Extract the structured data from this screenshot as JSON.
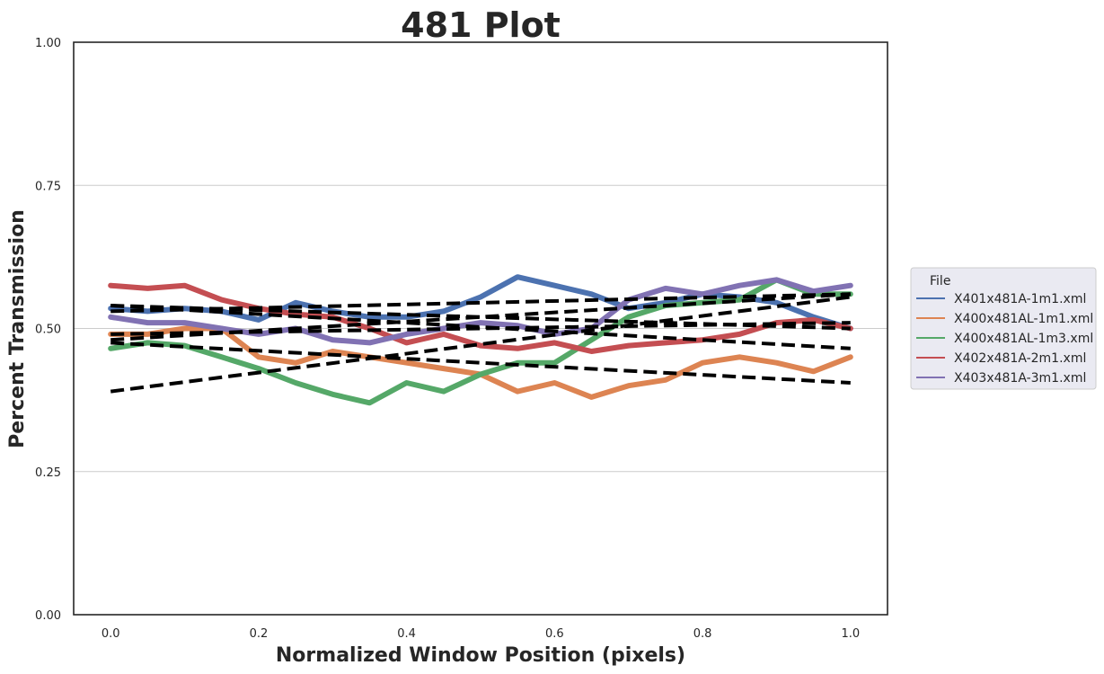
{
  "chart_data": {
    "type": "line",
    "title": "481 Plot",
    "xlabel": "Normalized Window Position (pixels)",
    "ylabel": "Percent Transmission",
    "xlim": [
      -0.05,
      1.05
    ],
    "ylim": [
      0.0,
      1.0
    ],
    "xticks": [
      "0.0",
      "0.2",
      "0.4",
      "0.6",
      "0.8",
      "1.0"
    ],
    "yticks": [
      "0.00",
      "0.25",
      "0.50",
      "0.75",
      "1.00"
    ],
    "grid": "horizontal",
    "legend": {
      "title": "File",
      "placement": "right-outside",
      "entries": [
        "X401x481A-1m1.xml",
        "X400x481AL-1m1.xml",
        "X400x481AL-1m3.xml",
        "X402x481A-2m1.xml",
        "X403x481A-3m1.xml"
      ]
    },
    "series": [
      {
        "name": "X401x481A-1m1.xml",
        "color": "#4c72b0",
        "x": [
          0.0,
          0.05,
          0.1,
          0.15,
          0.2,
          0.25,
          0.3,
          0.35,
          0.4,
          0.45,
          0.5,
          0.55,
          0.6,
          0.65,
          0.7,
          0.75,
          0.8,
          0.85,
          0.9,
          0.95,
          1.0
        ],
        "values": [
          0.535,
          0.53,
          0.535,
          0.53,
          0.515,
          0.545,
          0.53,
          0.52,
          0.52,
          0.53,
          0.555,
          0.59,
          0.575,
          0.56,
          0.535,
          0.545,
          0.56,
          0.555,
          0.545,
          0.52,
          0.5
        ]
      },
      {
        "name": "X400x481AL-1m1.xml",
        "color": "#dd8452",
        "x": [
          0.0,
          0.05,
          0.1,
          0.15,
          0.2,
          0.25,
          0.3,
          0.35,
          0.4,
          0.45,
          0.5,
          0.55,
          0.6,
          0.65,
          0.7,
          0.75,
          0.8,
          0.85,
          0.9,
          0.95,
          1.0
        ],
        "values": [
          0.49,
          0.49,
          0.5,
          0.5,
          0.45,
          0.44,
          0.46,
          0.45,
          0.44,
          0.43,
          0.42,
          0.39,
          0.405,
          0.38,
          0.4,
          0.41,
          0.44,
          0.45,
          0.44,
          0.425,
          0.45
        ]
      },
      {
        "name": "X400x481AL-1m3.xml",
        "color": "#55a868",
        "x": [
          0.0,
          0.05,
          0.1,
          0.15,
          0.2,
          0.25,
          0.3,
          0.35,
          0.4,
          0.45,
          0.5,
          0.55,
          0.6,
          0.65,
          0.7,
          0.75,
          0.8,
          0.85,
          0.9,
          0.95,
          1.0
        ],
        "values": [
          0.465,
          0.475,
          0.47,
          0.45,
          0.43,
          0.405,
          0.385,
          0.37,
          0.405,
          0.39,
          0.42,
          0.44,
          0.44,
          0.48,
          0.52,
          0.54,
          0.545,
          0.55,
          0.585,
          0.56,
          0.56
        ]
      },
      {
        "name": "X402x481A-2m1.xml",
        "color": "#c44e52",
        "x": [
          0.0,
          0.05,
          0.1,
          0.15,
          0.2,
          0.25,
          0.3,
          0.35,
          0.4,
          0.45,
          0.5,
          0.55,
          0.6,
          0.65,
          0.7,
          0.75,
          0.8,
          0.85,
          0.9,
          0.95,
          1.0
        ],
        "values": [
          0.575,
          0.57,
          0.575,
          0.55,
          0.535,
          0.525,
          0.52,
          0.5,
          0.475,
          0.49,
          0.47,
          0.465,
          0.475,
          0.46,
          0.47,
          0.475,
          0.48,
          0.49,
          0.51,
          0.515,
          0.5
        ]
      },
      {
        "name": "X403x481A-3m1.xml",
        "color": "#8172b3",
        "x": [
          0.0,
          0.05,
          0.1,
          0.15,
          0.2,
          0.25,
          0.3,
          0.35,
          0.4,
          0.45,
          0.5,
          0.55,
          0.6,
          0.65,
          0.7,
          0.75,
          0.8,
          0.85,
          0.9,
          0.95,
          1.0
        ],
        "values": [
          0.52,
          0.51,
          0.51,
          0.5,
          0.49,
          0.5,
          0.48,
          0.475,
          0.49,
          0.5,
          0.51,
          0.505,
          0.49,
          0.5,
          0.55,
          0.57,
          0.56,
          0.575,
          0.585,
          0.565,
          0.575
        ]
      }
    ],
    "trend_lines": [
      {
        "x": [
          0.0,
          1.0
        ],
        "values": [
          0.54,
          0.5
        ]
      },
      {
        "x": [
          0.0,
          1.0
        ],
        "values": [
          0.475,
          0.405
        ]
      },
      {
        "x": [
          0.0,
          1.0
        ],
        "values": [
          0.39,
          0.555
        ]
      },
      {
        "x": [
          0.0,
          1.0
        ],
        "values": [
          0.54,
          0.465
        ]
      },
      {
        "x": [
          0.0,
          1.0
        ],
        "values": [
          0.48,
          0.56
        ]
      },
      {
        "x": [
          0.0,
          1.0
        ],
        "values": [
          0.53,
          0.56
        ]
      },
      {
        "x": [
          0.0,
          1.0
        ],
        "values": [
          0.49,
          0.51
        ]
      }
    ],
    "trend_style": {
      "color": "#000000",
      "dash": "dashed"
    }
  }
}
